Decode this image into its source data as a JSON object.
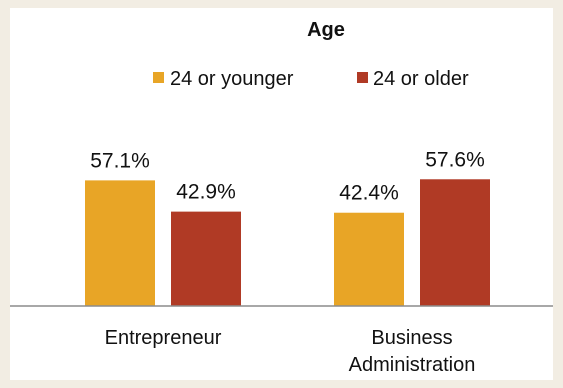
{
  "chart_data": {
    "type": "bar",
    "title": "Age",
    "categories": [
      "Entrepreneur",
      "Business Administration"
    ],
    "category_lines": [
      [
        "Entrepreneur"
      ],
      [
        "Business",
        "Administration"
      ]
    ],
    "series": [
      {
        "name": "24 or younger",
        "color": "#e8a526",
        "values": [
          57.1,
          42.4
        ],
        "labels": [
          "57.1%",
          "42.4%"
        ]
      },
      {
        "name": "24 or older",
        "color": "#b03a25",
        "values": [
          42.9,
          57.6
        ],
        "labels": [
          "42.9%",
          "57.6%"
        ]
      }
    ],
    "ylim": [
      0,
      100
    ],
    "grid": false,
    "legend": "top-center"
  }
}
